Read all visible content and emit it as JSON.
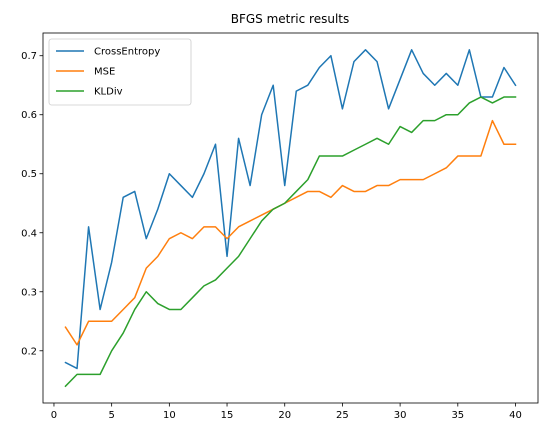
{
  "chart_data": {
    "type": "line",
    "title": "BFGS metric results",
    "xlabel": "",
    "ylabel": "",
    "x": [
      1,
      2,
      3,
      4,
      5,
      6,
      7,
      8,
      9,
      10,
      11,
      12,
      13,
      14,
      15,
      16,
      17,
      18,
      19,
      20,
      21,
      22,
      23,
      24,
      25,
      26,
      27,
      28,
      29,
      30,
      31,
      32,
      33,
      34,
      35,
      36,
      37,
      38,
      39,
      40
    ],
    "xlim": [
      -0.95,
      41.95
    ],
    "ylim": [
      0.1115,
      0.7385
    ],
    "xticks": [
      0,
      5,
      10,
      15,
      20,
      25,
      30,
      35,
      40
    ],
    "yticks": [
      0.2,
      0.3,
      0.4,
      0.5,
      0.6,
      0.7
    ],
    "xtick_labels": [
      "0",
      "5",
      "10",
      "15",
      "20",
      "25",
      "30",
      "35",
      "40"
    ],
    "ytick_labels": [
      "0.2",
      "0.3",
      "0.4",
      "0.5",
      "0.6",
      "0.7"
    ],
    "grid": false,
    "legend_position": "top-left",
    "series": [
      {
        "name": "CrossEntropy",
        "color": "#1f77b4",
        "values": [
          0.18,
          0.17,
          0.41,
          0.27,
          0.35,
          0.46,
          0.47,
          0.39,
          0.44,
          0.5,
          0.48,
          0.46,
          0.5,
          0.55,
          0.36,
          0.56,
          0.48,
          0.6,
          0.65,
          0.48,
          0.64,
          0.65,
          0.68,
          0.7,
          0.61,
          0.69,
          0.71,
          0.69,
          0.61,
          0.66,
          0.71,
          0.67,
          0.65,
          0.67,
          0.65,
          0.71,
          0.63,
          0.63,
          0.68,
          0.65
        ]
      },
      {
        "name": "MSE",
        "color": "#ff7f0e",
        "values": [
          0.24,
          0.21,
          0.25,
          0.25,
          0.25,
          0.27,
          0.29,
          0.34,
          0.36,
          0.39,
          0.4,
          0.39,
          0.41,
          0.41,
          0.39,
          0.41,
          0.42,
          0.43,
          0.44,
          0.45,
          0.46,
          0.47,
          0.47,
          0.46,
          0.48,
          0.47,
          0.47,
          0.48,
          0.48,
          0.49,
          0.49,
          0.49,
          0.5,
          0.51,
          0.53,
          0.53,
          0.53,
          0.59,
          0.55,
          0.55
        ]
      },
      {
        "name": "KLDiv",
        "color": "#2ca02c",
        "values": [
          0.14,
          0.16,
          0.16,
          0.16,
          0.2,
          0.23,
          0.27,
          0.3,
          0.28,
          0.27,
          0.27,
          0.29,
          0.31,
          0.32,
          0.34,
          0.36,
          0.39,
          0.42,
          0.44,
          0.45,
          0.47,
          0.49,
          0.53,
          0.53,
          0.53,
          0.54,
          0.55,
          0.56,
          0.55,
          0.58,
          0.57,
          0.59,
          0.59,
          0.6,
          0.6,
          0.62,
          0.63,
          0.62,
          0.63,
          0.63
        ]
      }
    ]
  }
}
